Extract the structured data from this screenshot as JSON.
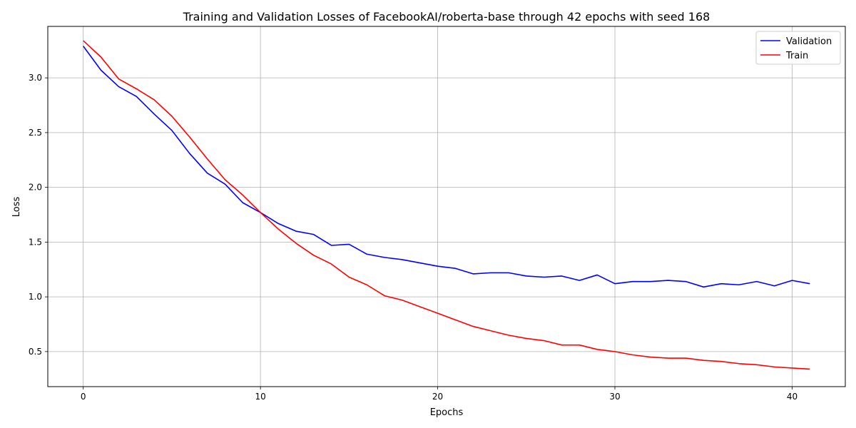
{
  "chart_data": {
    "type": "line",
    "title": "Training and Validation Losses of FacebookAI/roberta-base through 42 epochs with seed 168",
    "xlabel": "Epochs",
    "ylabel": "Loss",
    "xlim": [
      -2,
      43
    ],
    "ylim": [
      0.18,
      3.47
    ],
    "xticks": [
      0,
      10,
      20,
      30,
      40
    ],
    "yticks": [
      0.5,
      1.0,
      1.5,
      2.0,
      2.5,
      3.0
    ],
    "grid": true,
    "legend_position": "top-right",
    "x": [
      0,
      1,
      2,
      3,
      4,
      5,
      6,
      7,
      8,
      9,
      10,
      11,
      12,
      13,
      14,
      15,
      16,
      17,
      18,
      19,
      20,
      21,
      22,
      23,
      24,
      25,
      26,
      27,
      28,
      29,
      30,
      31,
      32,
      33,
      34,
      35,
      36,
      37,
      38,
      39,
      40,
      41
    ],
    "series": [
      {
        "name": "Validation",
        "color": "#0000ff",
        "values": [
          3.29,
          3.07,
          2.92,
          2.83,
          2.67,
          2.52,
          2.31,
          2.13,
          2.03,
          1.86,
          1.77,
          1.67,
          1.6,
          1.57,
          1.47,
          1.48,
          1.39,
          1.36,
          1.34,
          1.31,
          1.28,
          1.26,
          1.21,
          1.22,
          1.22,
          1.19,
          1.18,
          1.19,
          1.15,
          1.2,
          1.12,
          1.14,
          1.14,
          1.15,
          1.14,
          1.09,
          1.12,
          1.11,
          1.14,
          1.1,
          1.15,
          1.12
        ]
      },
      {
        "name": "Train",
        "color": "#ff0000",
        "values": [
          3.34,
          3.19,
          2.99,
          2.9,
          2.8,
          2.65,
          2.46,
          2.26,
          2.07,
          1.93,
          1.77,
          1.62,
          1.49,
          1.38,
          1.3,
          1.18,
          1.11,
          1.01,
          0.97,
          0.91,
          0.85,
          0.79,
          0.73,
          0.69,
          0.65,
          0.62,
          0.6,
          0.56,
          0.56,
          0.52,
          0.5,
          0.47,
          0.45,
          0.44,
          0.44,
          0.42,
          0.41,
          0.39,
          0.38,
          0.36,
          0.35,
          0.34
        ]
      }
    ]
  }
}
